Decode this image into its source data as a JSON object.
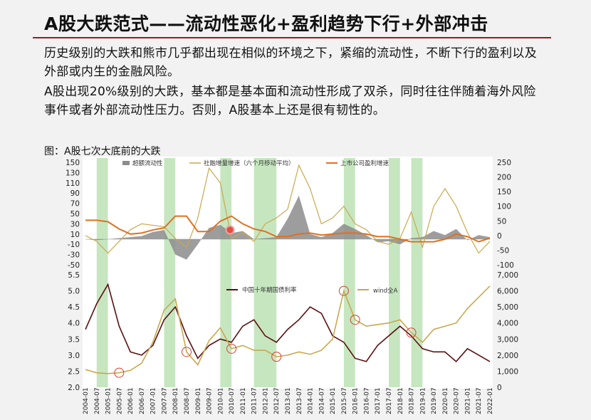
{
  "slide": {
    "title": "A股大跌范式——流动性恶化+盈利趋势下行+外部冲击",
    "paragraph1": "历史级别的大跌和熊市几乎都出现在相似的环境之下，紧缩的流动性，不断下行的盈利以及外部或内生的金融风险。",
    "paragraph2": "A股出现20%级别的大跌，基本都是基本面和流动性形成了双杀，同时往往伴随着海外风险事件或者外部流动性压力。否则，A股基本上还是很有韧性的。",
    "figure_label": "图：A股七次大底前的大跌"
  },
  "colors": {
    "shade": "#b8e0b0",
    "liquidity": "#8c8c8c",
    "social": "#c9a84e",
    "profit": "#e07020",
    "bond": "#5a1010",
    "wind": "#c9a84e",
    "marker": "#d84030",
    "title_rule": "#a01818"
  },
  "chart_data": [
    {
      "type": "line",
      "legend": [
        "超额流动性",
        "社融增量增速（六个月移动平均）",
        "上市公司盈利增速"
      ],
      "ylim_left": [
        -50,
        150
      ],
      "yticks_left": [
        "150",
        "130",
        "110",
        "90",
        "70",
        "50",
        "30",
        "10",
        "-10",
        "-30",
        "-50"
      ],
      "ylim_right": [
        -100,
        250
      ],
      "yticks_right": [
        "250",
        "200",
        "150",
        "100",
        "50",
        "0",
        "-50",
        "-100"
      ],
      "x": [
        "2004-01",
        "2004-07",
        "2005-01",
        "2005-07",
        "2006-01",
        "2006-07",
        "2007-01",
        "2007-07",
        "2008-01",
        "2008-07",
        "2009-01",
        "2009-07",
        "2010-01",
        "2010-07",
        "2011-01",
        "2011-07",
        "2012-01",
        "2012-07",
        "2013-01",
        "2013-07",
        "2014-01",
        "2014-07",
        "2015-01",
        "2015-07",
        "2016-01",
        "2016-07",
        "2017-01",
        "2017-07",
        "2018-01",
        "2018-07",
        "2019-01",
        "2019-07",
        "2020-01",
        "2020-07",
        "2021-01",
        "2021-07",
        "2022-01"
      ],
      "series": [
        {
          "name": "超额流动性",
          "axis": "left",
          "values": [
            0,
            -2,
            0,
            2,
            4,
            6,
            14,
            18,
            -30,
            -40,
            -10,
            22,
            28,
            12,
            16,
            0,
            2,
            4,
            40,
            85,
            10,
            4,
            12,
            30,
            20,
            8,
            -6,
            -4,
            -10,
            2,
            4,
            16,
            8,
            20,
            -2,
            8,
            4
          ]
        },
        {
          "name": "社融增量增速（六个月移动平均）",
          "axis": "right",
          "values": [
            0,
            -20,
            -60,
            -20,
            20,
            40,
            35,
            30,
            -10,
            -40,
            60,
            230,
            180,
            -10,
            10,
            -20,
            40,
            60,
            90,
            240,
            160,
            40,
            60,
            100,
            40,
            20,
            -20,
            -30,
            -10,
            80,
            -40,
            100,
            160,
            100,
            10,
            -60,
            -20
          ]
        },
        {
          "name": "上市公司盈利增速",
          "axis": "left",
          "values": [
            37,
            37,
            34,
            20,
            10,
            12,
            18,
            22,
            45,
            45,
            15,
            15,
            35,
            45,
            30,
            20,
            15,
            5,
            5,
            10,
            12,
            8,
            10,
            12,
            12,
            10,
            5,
            5,
            0,
            -5,
            -5,
            -5,
            0,
            10,
            5,
            -5,
            2
          ]
        }
      ]
    },
    {
      "type": "line",
      "legend": [
        "中国十年期国债利率",
        "wind全A"
      ],
      "ylim_left": [
        2.0,
        5.5
      ],
      "yticks_left": [
        "2.0",
        "2.5",
        "3.0",
        "3.5",
        "4.0",
        "4.5",
        "5.0",
        "5.5"
      ],
      "ylim_right": [
        0,
        7000
      ],
      "yticks_right": [
        "0",
        "1,000",
        "2,000",
        "3,000",
        "4,000",
        "5,000",
        "6,000",
        "7,000"
      ],
      "x": [
        "2004-01",
        "2004-07",
        "2005-01",
        "2005-07",
        "2006-01",
        "2006-07",
        "2007-01",
        "2007-07",
        "2008-01",
        "2008-07",
        "2009-01",
        "2009-07",
        "2010-01",
        "2010-07",
        "2011-01",
        "2011-07",
        "2012-01",
        "2012-07",
        "2013-01",
        "2013-07",
        "2014-01",
        "2014-07",
        "2015-01",
        "2015-07",
        "2016-01",
        "2016-07",
        "2017-01",
        "2017-07",
        "2018-01",
        "2018-07",
        "2019-01",
        "2019-07",
        "2020-01",
        "2020-07",
        "2021-01",
        "2021-07",
        "2022-01"
      ],
      "series": [
        {
          "name": "中国十年期国债利率",
          "axis": "left",
          "values": [
            3.8,
            4.6,
            5.2,
            3.9,
            3.1,
            3.0,
            3.3,
            4.1,
            4.5,
            3.6,
            2.9,
            3.3,
            3.5,
            3.4,
            3.9,
            4.1,
            3.6,
            3.4,
            3.8,
            4.1,
            4.5,
            4.3,
            3.6,
            3.4,
            2.9,
            2.8,
            3.3,
            3.6,
            3.9,
            3.6,
            3.2,
            3.1,
            3.1,
            2.8,
            3.2,
            3.0,
            2.8
          ]
        },
        {
          "name": "wind全A",
          "axis": "right",
          "values": [
            1100,
            900,
            850,
            900,
            1050,
            1500,
            2800,
            4800,
            5500,
            2200,
            1400,
            2900,
            3700,
            2400,
            2600,
            2300,
            2300,
            1900,
            2000,
            2200,
            2050,
            2300,
            3000,
            6000,
            4200,
            3800,
            3900,
            4000,
            4200,
            3400,
            2800,
            3600,
            3800,
            4000,
            4900,
            5600,
            6300
          ]
        }
      ],
      "annotations": [
        "2005-07",
        "2008-07",
        "2010-07",
        "2012-07",
        "2015-07",
        "2016-01",
        "2018-07"
      ]
    }
  ],
  "shade_periods": [
    [
      "2004-07",
      "2005-01"
    ],
    [
      "2007-07",
      "2008-01"
    ],
    [
      "2010-01",
      "2010-07"
    ],
    [
      "2011-07",
      "2012-07"
    ],
    [
      "2015-07",
      "2016-01"
    ],
    [
      "2017-07",
      "2018-01"
    ],
    [
      "2018-07",
      "2019-01"
    ]
  ]
}
